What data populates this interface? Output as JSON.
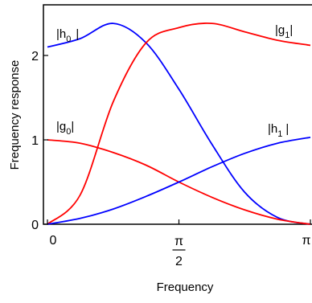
{
  "chart_data": {
    "type": "line",
    "xlabel": "Frequency",
    "ylabel": "Frequency response",
    "xlim": [
      0,
      3.1416
    ],
    "ylim": [
      0,
      2.6
    ],
    "x_ticks": [
      {
        "value": 0,
        "label": "0"
      },
      {
        "value": 1.5708,
        "label_top": "π",
        "label_bottom": "2"
      },
      {
        "value": 3.1416,
        "label": "π"
      }
    ],
    "y_ticks": [
      {
        "value": 0,
        "label": "0"
      },
      {
        "value": 1,
        "label": "1"
      },
      {
        "value": 2,
        "label": "2"
      }
    ],
    "x_samples": [
      0,
      0.3927,
      0.7854,
      1.1781,
      1.5708,
      1.9635,
      2.3562,
      2.7489,
      3.1416
    ],
    "series": [
      {
        "name": "|h0|",
        "label_main": "|h",
        "label_sub": "0",
        "label_end": "|",
        "color": "#0000ff",
        "values": [
          2.1,
          2.2,
          2.38,
          2.15,
          1.6,
          0.95,
          0.38,
          0.08,
          0.0
        ]
      },
      {
        "name": "|g1|",
        "label_main": "|g",
        "label_sub": "1",
        "label_end": "|",
        "color": "#ff0000",
        "values": [
          0.0,
          0.35,
          1.45,
          2.15,
          2.33,
          2.38,
          2.28,
          2.18,
          2.12
        ]
      },
      {
        "name": "|g0|",
        "label_main": "|g",
        "label_sub": "0",
        "label_end": "|",
        "color": "#ff0000",
        "values": [
          1.0,
          0.96,
          0.85,
          0.7,
          0.5,
          0.32,
          0.17,
          0.06,
          0.0
        ]
      },
      {
        "name": "|h1|",
        "label_main": "|h",
        "label_sub": "1",
        "label_end": "|",
        "color": "#0000ff",
        "values": [
          0.0,
          0.07,
          0.18,
          0.33,
          0.5,
          0.68,
          0.84,
          0.96,
          1.03
        ]
      }
    ],
    "grid": false,
    "legend": "none"
  }
}
